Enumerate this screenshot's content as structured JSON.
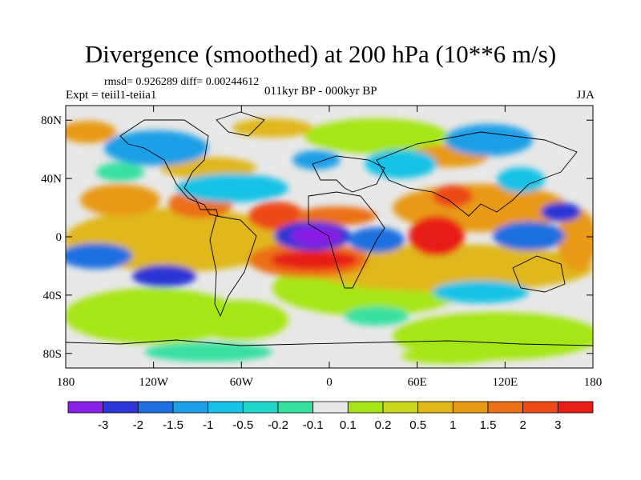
{
  "title": "Divergence (smoothed) at 200 hPa (10**6 m/s)",
  "stats": "rmsd= 0.926289 diff= 0.00244612",
  "experiment": "Expt = teiil1-teiia1",
  "period": "011kyr BP - 000kyr BP",
  "season": "JJA",
  "colors": {
    "neg3": "#8a1fe6",
    "neg2": "#2c36d6",
    "neg15": "#1f6fe0",
    "neg1": "#1c9fe6",
    "neg05": "#17c2e6",
    "neg02": "#1fd6c9",
    "neg01": "#38e0a0",
    "neutral": "#e8e8e8",
    "pos01": "#a6e619",
    "pos02": "#c8d61c",
    "pos05": "#e0b81a",
    "pos1": "#e89a17",
    "pos15": "#eb7018",
    "pos2": "#ec4a17",
    "pos3": "#e81d15"
  },
  "chart_data": {
    "type": "heatmap",
    "map": "global equirectangular",
    "x_ticks": [
      "180",
      "120W",
      "60W",
      "0",
      "60E",
      "120E",
      "180"
    ],
    "y_ticks": [
      "80N",
      "40N",
      "0",
      "40S",
      "80S"
    ],
    "xlim": [
      -180,
      180
    ],
    "ylim": [
      -90,
      90
    ],
    "colorbar": {
      "labels": [
        "-3",
        "-2",
        "-1.5",
        "-1",
        "-0.5",
        "-0.2",
        "-0.1",
        "0.1",
        "0.2",
        "0.5",
        "1",
        "1.5",
        "2",
        "3"
      ],
      "n_colors": 15
    }
  }
}
